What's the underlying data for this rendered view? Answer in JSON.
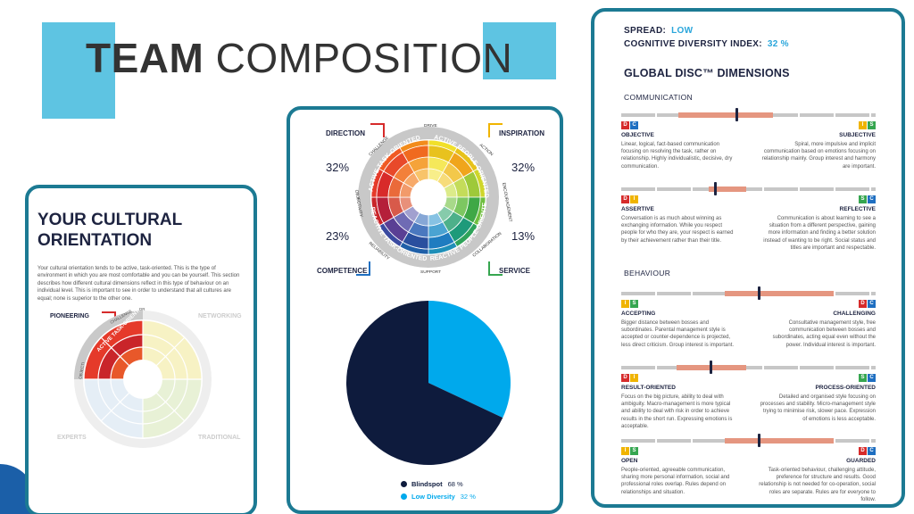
{
  "title": {
    "bold": "TEAM",
    "rest": " COMPOSITION"
  },
  "left_card": {
    "heading_line1": "YOUR CULTURAL",
    "heading_line2": "ORIENTATION",
    "body": "Your cultural orientation tends to be active, task-oriented. This is the type of environment in which you are most comfortable and you can be yourself. This section describes how different cultural dimensions reflect in this type of behaviour on an individual level. This is important to see in order to understand that all cultures are equal; none is superior to the other one.",
    "tags": {
      "pioneering": "PIONEERING",
      "networking": "NETWORKING",
      "experts": "EXPERTS",
      "traditional": "TRADITIONAL"
    },
    "wheel_labels": {
      "active_task": "ACTIVE TASK-ORIENTED",
      "challenge": "CHALLENGE",
      "dr": "DR",
      "objectivity": "OBJECTI"
    }
  },
  "middle_card": {
    "corners": {
      "direction": "DIRECTION",
      "inspiration": "INSPIRATION",
      "competence": "COMPETENCE",
      "service": "SERVICE"
    },
    "percentages": {
      "direction": "32%",
      "inspiration": "32%",
      "competence": "23%",
      "service": "13%"
    },
    "ring_labels": {
      "active_task": "ACTIVE TASK-ORIENTED",
      "active_people": "ACTIVE PEOPLE-ORIENTED",
      "reactive_task": "REACTIVE TASK-ORIENTED",
      "reactive_people": "REACTIVE PEOPLE-ORIENTED",
      "drive": "DRIVE",
      "action": "ACTION",
      "encouragement": "ENCOURAGEMENT",
      "collaboration": "COLLABORATION",
      "support": "SUPPORT",
      "reliability": "RELIABILITY",
      "objectivity": "OBJECTIVITY",
      "challenge": "CHALLENGE"
    },
    "pie": {
      "slices": [
        {
          "name": "Blindspot",
          "value": 68,
          "color": "#0e1b3d"
        },
        {
          "name": "Low Diversity",
          "value": 32,
          "color": "#00a9ec"
        }
      ],
      "legend": [
        {
          "label": "Blindspot",
          "value": "68 %"
        },
        {
          "label": "Low Diversity",
          "value": "32 %"
        }
      ]
    }
  },
  "right_card": {
    "spread_label": "SPREAD:",
    "spread_value": "LOW",
    "cdi_label": "COGNITIVE DIVERSITY INDEX:",
    "cdi_value": "32 %",
    "heading": "GLOBAL DISC™ DIMENSIONS",
    "communication": "COMMUNICATION",
    "behaviour": "BEHAVIOUR",
    "dimensions": [
      {
        "left_title": "OBJECTIVE",
        "right_title": "SUBJECTIVE",
        "left_text": "Linear, logical, fact-based communication focusing on resolving the task, rather on relationship. Highly individualistic, decisive, dry communication.",
        "right_text": "Spiral, more impulsive and implicit communication based on emotions focusing on relationship mainly. Group interest and harmony are important."
      },
      {
        "left_title": "ASSERTIVE",
        "right_title": "REFLECTIVE",
        "left_text": "Conversation is as much about winning as exchanging information. While you respect people for who they are, your respect is earned by their achievement rather than their title.",
        "right_text": "Communication is about learning to see a situation from a different perspective, gaining more information and finding a better solution instead of wanting to be right. Social status and titles are important and respectable."
      },
      {
        "left_title": "ACCEPTING",
        "right_title": "CHALLENGING",
        "left_text": "Bigger distance between bosses and subordinates. Parental management style is accepted or counter-dependence is projected, less direct criticism. Group interest is important.",
        "right_text": "Consultative management style, free communication between bosses and subordinates, acting equal even without the power. Individual interest is important."
      },
      {
        "left_title": "RESULT-ORIENTED",
        "right_title": "PROCESS-ORIENTED",
        "left_text": "Focus on the big picture, ability to deal with ambiguity. Macro-management is more typical and ability to deal with risk in order to achieve results in the short run. Expressing emotions is acceptable.",
        "right_text": "Detailed and organised style focusing on processes and stability. Micro-management style trying to minimise risk, slower pace. Expression of emotions is less acceptable."
      },
      {
        "left_title": "OPEN",
        "right_title": "GUARDED",
        "left_text": "People-oriented, agreeable communication, sharing more personal information, social and professional roles overlap. Rules depend on relationships and situation.",
        "right_text": "Task-oriented behaviour, challenging attitude, preference for structure and results. Good relationship is not needed for co-operation, social roles are separate. Rules are for everyone to follow."
      }
    ]
  },
  "colors": {
    "card_border": "#1c7a93",
    "accent_blue": "#5ec4e2",
    "navy": "#0e1b3d",
    "sky": "#00a9ec",
    "band": "#e59680"
  }
}
